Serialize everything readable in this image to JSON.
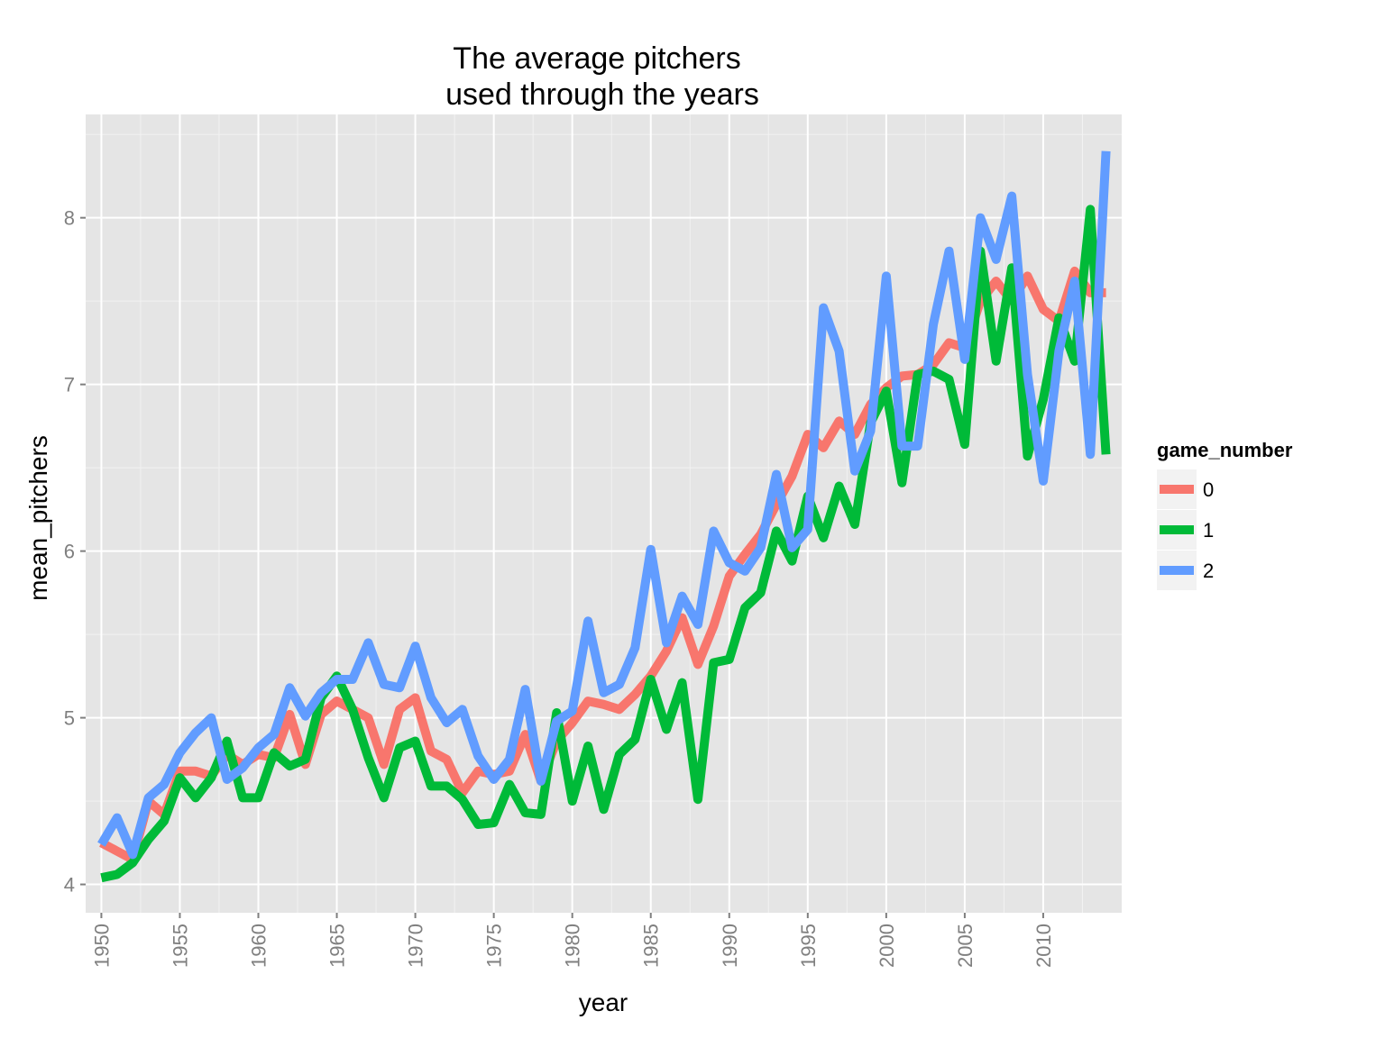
{
  "chart_data": {
    "type": "line",
    "title_line1": "The average pitchers",
    "title_line2": "used through the years",
    "xlabel": "year",
    "ylabel": "mean_pitchers",
    "xlim": [
      1949,
      2015
    ],
    "ylim": [
      3.83,
      8.62
    ],
    "x_ticks": [
      1950,
      1955,
      1960,
      1965,
      1970,
      1975,
      1980,
      1985,
      1990,
      1995,
      2000,
      2005,
      2010
    ],
    "y_ticks": [
      4,
      5,
      6,
      7,
      8
    ],
    "grid": true,
    "legend": {
      "title": "game_number",
      "position": "right"
    },
    "x": [
      1950,
      1951,
      1952,
      1953,
      1954,
      1955,
      1956,
      1957,
      1958,
      1959,
      1960,
      1961,
      1962,
      1963,
      1964,
      1965,
      1966,
      1967,
      1968,
      1969,
      1970,
      1971,
      1972,
      1973,
      1974,
      1975,
      1976,
      1977,
      1978,
      1979,
      1980,
      1981,
      1982,
      1983,
      1984,
      1985,
      1986,
      1987,
      1988,
      1989,
      1990,
      1991,
      1992,
      1993,
      1994,
      1995,
      1996,
      1997,
      1998,
      1999,
      2000,
      2001,
      2002,
      2003,
      2004,
      2005,
      2006,
      2007,
      2008,
      2009,
      2010,
      2011,
      2012,
      2013,
      2014
    ],
    "series": [
      {
        "name": "0",
        "color": "#F8766D",
        "values": [
          4.25,
          4.2,
          4.15,
          4.5,
          4.42,
          4.68,
          4.68,
          4.65,
          4.78,
          4.72,
          4.78,
          4.76,
          5.02,
          4.72,
          5.02,
          5.1,
          5.05,
          5.0,
          4.72,
          5.05,
          5.12,
          4.8,
          4.75,
          4.55,
          4.68,
          4.66,
          4.68,
          4.9,
          4.62,
          4.86,
          4.97,
          5.1,
          5.08,
          5.05,
          5.14,
          5.25,
          5.4,
          5.6,
          5.32,
          5.55,
          5.85,
          5.98,
          6.1,
          6.28,
          6.45,
          6.7,
          6.62,
          6.78,
          6.7,
          6.88,
          6.98,
          7.05,
          7.06,
          7.12,
          7.25,
          7.22,
          7.5,
          7.62,
          7.5,
          7.65,
          7.45,
          7.38,
          7.68,
          7.55,
          7.55
        ]
      },
      {
        "name": "1",
        "color": "#00BA38",
        "values": [
          4.04,
          4.06,
          4.13,
          4.27,
          4.38,
          4.64,
          4.52,
          4.64,
          4.86,
          4.52,
          4.52,
          4.79,
          4.71,
          4.75,
          5.12,
          5.25,
          5.05,
          4.76,
          4.52,
          4.82,
          4.86,
          4.59,
          4.59,
          4.51,
          4.36,
          4.37,
          4.6,
          4.43,
          4.42,
          5.03,
          4.5,
          4.83,
          4.45,
          4.78,
          4.87,
          5.23,
          4.93,
          5.21,
          4.51,
          5.33,
          5.35,
          5.66,
          5.75,
          6.12,
          5.94,
          6.33,
          6.08,
          6.39,
          6.16,
          6.77,
          6.96,
          6.41,
          7.06,
          7.08,
          7.03,
          6.64,
          7.8,
          7.14,
          7.7,
          6.57,
          6.91,
          7.4,
          7.14,
          8.05,
          6.58
        ]
      },
      {
        "name": "2",
        "color": "#619CFF",
        "values": [
          4.24,
          4.4,
          4.18,
          4.52,
          4.6,
          4.79,
          4.91,
          5.0,
          4.63,
          4.7,
          4.82,
          4.9,
          5.18,
          5.01,
          5.15,
          5.23,
          5.23,
          5.45,
          5.2,
          5.18,
          5.43,
          5.12,
          4.97,
          5.05,
          4.77,
          4.63,
          4.75,
          5.17,
          4.62,
          4.98,
          5.04,
          5.58,
          5.15,
          5.2,
          5.42,
          6.01,
          5.45,
          5.73,
          5.56,
          6.12,
          5.93,
          5.88,
          6.02,
          6.46,
          6.02,
          6.13,
          7.46,
          7.2,
          6.48,
          6.72,
          7.65,
          6.63,
          6.63,
          7.36,
          7.8,
          7.15,
          8.0,
          7.75,
          8.13,
          7.06,
          6.42,
          7.2,
          7.62,
          6.58,
          8.4
        ]
      }
    ]
  }
}
